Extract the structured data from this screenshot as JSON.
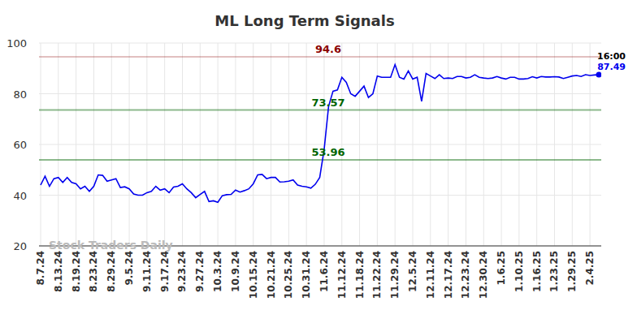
{
  "chart_data": {
    "type": "line",
    "title": "ML Long Term Signals",
    "categories": [
      "8.7.24",
      null,
      null,
      null,
      "8.13.24",
      null,
      null,
      null,
      "8.19.24",
      null,
      null,
      null,
      "8.23.24",
      null,
      null,
      null,
      "8.29.24",
      null,
      null,
      null,
      "9.5.24",
      null,
      null,
      null,
      "9.11.24",
      null,
      null,
      null,
      "9.17.24",
      null,
      null,
      null,
      "9.23.24",
      null,
      null,
      null,
      "9.27.24",
      null,
      null,
      null,
      "10.3.24",
      null,
      null,
      null,
      "10.9.24",
      null,
      null,
      null,
      "10.15.24",
      null,
      null,
      null,
      "10.21.24",
      null,
      null,
      null,
      "10.25.24",
      null,
      null,
      null,
      "10.31.24",
      null,
      null,
      null,
      "11.6.24",
      null,
      null,
      null,
      "11.12.24",
      null,
      null,
      null,
      "11.18.24",
      null,
      null,
      null,
      "11.22.24",
      null,
      null,
      null,
      "11.29.24",
      null,
      null,
      null,
      "12.5.24",
      null,
      null,
      null,
      "12.11.24",
      null,
      null,
      null,
      "12.17.24",
      null,
      null,
      null,
      "12.23.24",
      null,
      null,
      null,
      "12.30.24",
      null,
      null,
      null,
      "1.6.25",
      null,
      null,
      null,
      "1.10.25",
      null,
      null,
      null,
      "1.16.25",
      null,
      null,
      null,
      "1.23.25",
      null,
      null,
      null,
      "1.29.25",
      null,
      null,
      null,
      "2.4.25",
      null,
      null
    ],
    "values": [
      44,
      47.5,
      43.5,
      46.5,
      47,
      45,
      47,
      45,
      44.5,
      42.5,
      43.5,
      41.5,
      43.5,
      48,
      47.8,
      45.5,
      46,
      46.5,
      43,
      43.3,
      42.5,
      40.5,
      40,
      40,
      41,
      41.5,
      43.5,
      42,
      42.5,
      41,
      43.2,
      43.5,
      44.5,
      42.5,
      41,
      39,
      40.3,
      41.5,
      37.5,
      37.8,
      37.2,
      39.8,
      40.2,
      40.3,
      42,
      41.2,
      41.8,
      42.5,
      44.5,
      48,
      48.2,
      46.5,
      47,
      47,
      45.2,
      45.3,
      45.5,
      46,
      44,
      43.5,
      43.3,
      42.8,
      44.3,
      47,
      58,
      75,
      81,
      81.5,
      86.5,
      84.5,
      80,
      79,
      81,
      83,
      78.5,
      80,
      87,
      86.5,
      86.5,
      86.5,
      91.5,
      86.5,
      85.8,
      89,
      85.8,
      86.5,
      77,
      88,
      87,
      86,
      87.5,
      86,
      86.2,
      86,
      86.8,
      86.8,
      86.2,
      86.5,
      87.5,
      86.5,
      86.2,
      86,
      86.2,
      86.8,
      86.2,
      85.8,
      86.5,
      86.5,
      85.8,
      85.8,
      86,
      86.7,
      86.2,
      86.8,
      86.6,
      86.6,
      86.7,
      86.6,
      86,
      86.5,
      87,
      87.2,
      86.8,
      87.5,
      87.2,
      87.4,
      87.49
    ],
    "color": "#0000ee",
    "ylim": [
      20,
      100
    ],
    "yticks": [
      20,
      40,
      60,
      80,
      100
    ],
    "grid": true,
    "hlines": [
      {
        "value": 94.6,
        "color": "#8b0000"
      },
      {
        "value": 73.57,
        "color": "#006400"
      },
      {
        "value": 53.96,
        "color": "#006400"
      }
    ],
    "last_time": "16:00",
    "watermark": "Stock Traders Daily"
  }
}
